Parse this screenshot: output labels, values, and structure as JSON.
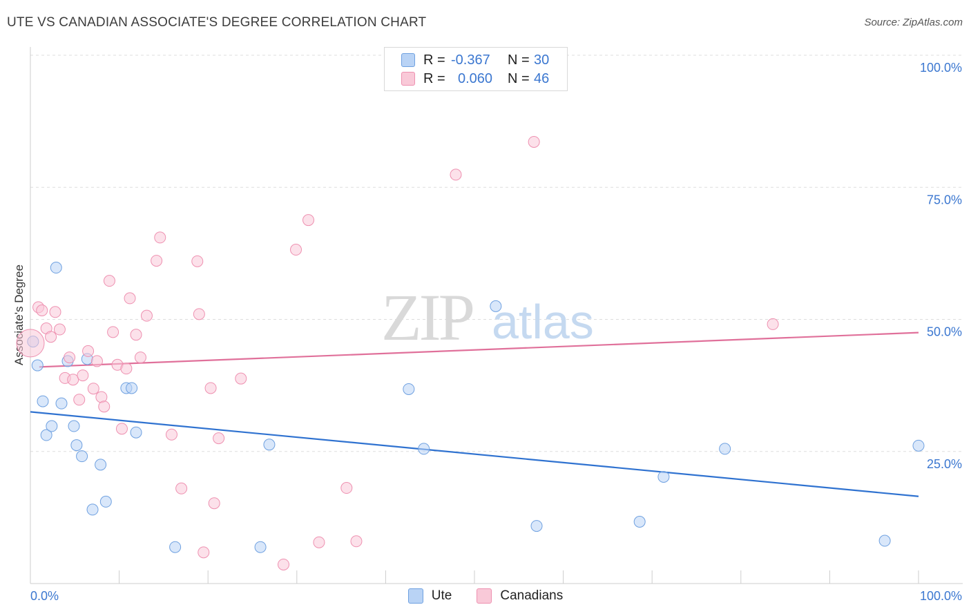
{
  "header": {
    "title": "UTE VS CANADIAN ASSOCIATE'S DEGREE CORRELATION CHART",
    "source": "Source: ZipAtlas.com"
  },
  "watermark": {
    "zip": "ZIP",
    "atlas": "atlas"
  },
  "legend": {
    "rows": [
      {
        "r_label": "R =",
        "r_value": "-0.367",
        "n_label": "N =",
        "n_value": "30",
        "fill": "#b9d3f5",
        "stroke": "#6ea0e0"
      },
      {
        "r_label": "R =",
        "r_value": "0.060",
        "n_label": "N =",
        "n_value": "46",
        "fill": "#f9c9d8",
        "stroke": "#ee90b0"
      }
    ]
  },
  "bottom_legend": [
    {
      "label": "Ute",
      "fill": "#b9d3f5",
      "stroke": "#6ea0e0"
    },
    {
      "label": "Canadians",
      "fill": "#f9c9d8",
      "stroke": "#ee90b0"
    }
  ],
  "chart_data": {
    "type": "scatter",
    "title": "UTE VS CANADIAN ASSOCIATE'S DEGREE CORRELATION CHART",
    "xlabel": "",
    "ylabel": "Associate's Degree",
    "xlim": [
      0,
      100
    ],
    "ylim": [
      0,
      100
    ],
    "x_tick_labels": [
      "0.0%",
      "100.0%"
    ],
    "y_tick_labels": [
      {
        "value": 25,
        "label": "25.0%"
      },
      {
        "value": 50,
        "label": "50.0%"
      },
      {
        "value": 75,
        "label": "75.0%"
      },
      {
        "value": 100,
        "label": "100.0%"
      }
    ],
    "series": [
      {
        "name": "Ute",
        "fill": "#b9d3f5",
        "stroke": "#6ea0e0",
        "trend_color": "#2f72d0",
        "trend": {
          "x0": 0,
          "y0": 32.5,
          "x1": 100,
          "y1": 16.5
        },
        "points": [
          {
            "x": 0.3,
            "y": 45.8
          },
          {
            "x": 0.8,
            "y": 41.3
          },
          {
            "x": 1.4,
            "y": 34.5
          },
          {
            "x": 1.8,
            "y": 28.1
          },
          {
            "x": 2.4,
            "y": 29.8
          },
          {
            "x": 2.9,
            "y": 59.8
          },
          {
            "x": 3.5,
            "y": 34.1
          },
          {
            "x": 4.2,
            "y": 42.1
          },
          {
            "x": 4.9,
            "y": 29.8
          },
          {
            "x": 5.2,
            "y": 26.2
          },
          {
            "x": 5.8,
            "y": 24.1
          },
          {
            "x": 6.4,
            "y": 42.5
          },
          {
            "x": 7.0,
            "y": 14.0
          },
          {
            "x": 7.9,
            "y": 22.5
          },
          {
            "x": 8.5,
            "y": 15.5
          },
          {
            "x": 10.8,
            "y": 37.0
          },
          {
            "x": 11.4,
            "y": 37.0
          },
          {
            "x": 11.9,
            "y": 28.6
          },
          {
            "x": 16.3,
            "y": 6.9
          },
          {
            "x": 25.9,
            "y": 6.9
          },
          {
            "x": 26.9,
            "y": 26.3
          },
          {
            "x": 52.4,
            "y": 52.5
          },
          {
            "x": 42.6,
            "y": 36.8
          },
          {
            "x": 44.3,
            "y": 25.5
          },
          {
            "x": 57.0,
            "y": 10.9
          },
          {
            "x": 71.3,
            "y": 20.2
          },
          {
            "x": 68.6,
            "y": 11.7
          },
          {
            "x": 78.2,
            "y": 25.5
          },
          {
            "x": 96.2,
            "y": 8.1
          },
          {
            "x": 100.0,
            "y": 26.1
          }
        ]
      },
      {
        "name": "Canadians",
        "fill": "#f9c9d8",
        "stroke": "#ee90b0",
        "trend_color": "#e0709a",
        "trend": {
          "x0": 1.0,
          "y0": 41.0,
          "x1": 100,
          "y1": 47.5
        },
        "points": [
          {
            "x": 0.0,
            "y": 45.5
          },
          {
            "x": 0.9,
            "y": 52.3
          },
          {
            "x": 1.3,
            "y": 51.7
          },
          {
            "x": 1.8,
            "y": 48.3
          },
          {
            "x": 2.3,
            "y": 46.7
          },
          {
            "x": 2.8,
            "y": 51.4
          },
          {
            "x": 3.3,
            "y": 48.1
          },
          {
            "x": 3.9,
            "y": 38.9
          },
          {
            "x": 4.4,
            "y": 42.8
          },
          {
            "x": 4.8,
            "y": 38.6
          },
          {
            "x": 5.5,
            "y": 34.8
          },
          {
            "x": 5.9,
            "y": 39.4
          },
          {
            "x": 6.5,
            "y": 44.0
          },
          {
            "x": 7.1,
            "y": 36.9
          },
          {
            "x": 7.5,
            "y": 42.1
          },
          {
            "x": 8.0,
            "y": 35.3
          },
          {
            "x": 8.3,
            "y": 33.5
          },
          {
            "x": 8.9,
            "y": 57.3
          },
          {
            "x": 9.3,
            "y": 47.6
          },
          {
            "x": 9.8,
            "y": 41.4
          },
          {
            "x": 10.3,
            "y": 29.3
          },
          {
            "x": 10.8,
            "y": 40.7
          },
          {
            "x": 11.2,
            "y": 54.0
          },
          {
            "x": 11.9,
            "y": 47.1
          },
          {
            "x": 12.4,
            "y": 42.8
          },
          {
            "x": 13.1,
            "y": 50.7
          },
          {
            "x": 14.2,
            "y": 61.1
          },
          {
            "x": 14.6,
            "y": 65.5
          },
          {
            "x": 15.9,
            "y": 28.2
          },
          {
            "x": 17.0,
            "y": 18.0
          },
          {
            "x": 18.8,
            "y": 61.0
          },
          {
            "x": 19.0,
            "y": 51.0
          },
          {
            "x": 19.5,
            "y": 5.9
          },
          {
            "x": 20.3,
            "y": 37.0
          },
          {
            "x": 20.7,
            "y": 15.2
          },
          {
            "x": 21.2,
            "y": 27.5
          },
          {
            "x": 23.7,
            "y": 38.8
          },
          {
            "x": 28.5,
            "y": 3.6
          },
          {
            "x": 29.9,
            "y": 63.2
          },
          {
            "x": 31.3,
            "y": 68.8
          },
          {
            "x": 32.5,
            "y": 7.8
          },
          {
            "x": 35.6,
            "y": 18.1
          },
          {
            "x": 36.7,
            "y": 8.0
          },
          {
            "x": 47.9,
            "y": 77.4
          },
          {
            "x": 56.7,
            "y": 83.6
          },
          {
            "x": 83.6,
            "y": 49.1
          }
        ]
      }
    ]
  }
}
